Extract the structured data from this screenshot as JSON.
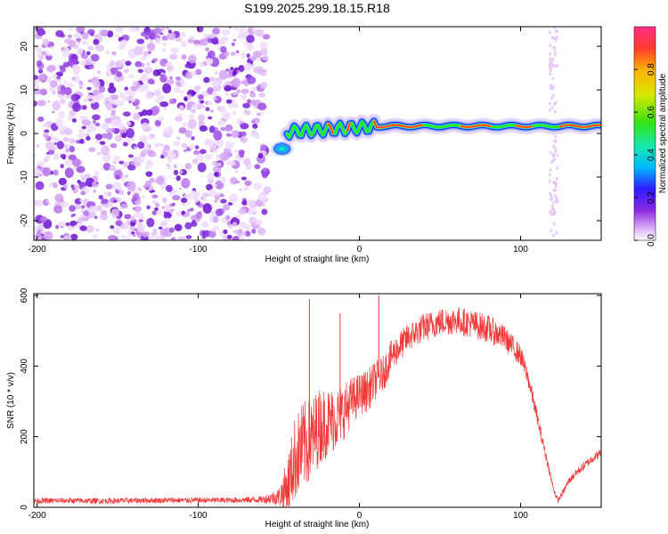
{
  "figure_title": "S199.2025.299.18.15.R18",
  "colors": {
    "snr_line": "#f03a3a",
    "noise_purple": "#8a2be2",
    "axis": "#000000"
  },
  "chart_data": [
    {
      "type": "heatmap",
      "title": "",
      "xlabel": "Height of straight line (km)",
      "ylabel": "Frequency (Hz)",
      "xlim": [
        -202,
        150
      ],
      "ylim": [
        -24.5,
        24.5
      ],
      "xticks": [
        -200,
        -100,
        0,
        100
      ],
      "xtick_labels": [
        "-200",
        "-100",
        "0",
        "100"
      ],
      "yticks": [
        -20,
        -10,
        0,
        10,
        20
      ],
      "ytick_labels": [
        "-20",
        "-10",
        "0",
        "10",
        "20"
      ],
      "colorbar": {
        "label": "Normalized spectral amplitude",
        "range": [
          0,
          1
        ],
        "ticks": [
          0,
          0.2,
          0.4,
          0.6,
          0.8
        ],
        "tick_labels": [
          "0.0",
          "0.2",
          "0.4",
          "0.6",
          "0.8"
        ],
        "colormap": [
          "#ffffff",
          "#d9a8f5",
          "#8a2be2",
          "#2f1bff",
          "#00b7ff",
          "#18e8b0",
          "#34e312",
          "#d6e800",
          "#ffb000",
          "#ff3b2f",
          "#ff2f8a"
        ]
      },
      "regions": [
        {
          "name": "noise",
          "x_range": [
            -202,
            -57
          ],
          "freq_range": [
            -24.5,
            24.5
          ],
          "amplitude": [
            0.02,
            0.25
          ]
        },
        {
          "name": "signal-onset",
          "x_range": [
            -57,
            -40
          ],
          "freq_center": -3,
          "amplitude": [
            0.2,
            0.5
          ]
        },
        {
          "name": "signal-trace",
          "x_range": [
            -40,
            150
          ],
          "freq_center_start": 0,
          "freq_center_end": 1.8,
          "amplitude": [
            0.3,
            1.0
          ]
        },
        {
          "name": "artifact-column",
          "x_range": [
            118,
            123
          ],
          "freq_range": [
            -24.5,
            24.5
          ],
          "amplitude": [
            0.02,
            0.1
          ]
        }
      ]
    },
    {
      "type": "line",
      "title": "",
      "xlabel": "Height of straight line (km)",
      "ylabel": "SNR (10 * v/v)",
      "xlim": [
        -202,
        150
      ],
      "ylim": [
        0,
        605
      ],
      "xticks": [
        -200,
        -100,
        0,
        100
      ],
      "xtick_labels": [
        "-200",
        "-100",
        "0",
        "100"
      ],
      "yticks": [
        0,
        200,
        400,
        600
      ],
      "ytick_labels": [
        "0",
        "200",
        "400",
        "600"
      ],
      "series": [
        {
          "name": "SNR",
          "x": [
            -202,
            -180,
            -160,
            -140,
            -120,
            -100,
            -80,
            -60,
            -50,
            -45,
            -40,
            -35,
            -30,
            -25,
            -20,
            -15,
            -10,
            -5,
            0,
            5,
            10,
            15,
            20,
            30,
            40,
            50,
            60,
            70,
            80,
            90,
            100,
            105,
            110,
            115,
            120,
            123,
            126,
            130,
            135,
            140,
            145,
            150
          ],
          "y": [
            18,
            19,
            18,
            19,
            20,
            20,
            20,
            22,
            30,
            55,
            140,
            170,
            190,
            230,
            240,
            250,
            270,
            300,
            320,
            330,
            360,
            380,
            430,
            480,
            510,
            525,
            530,
            520,
            505,
            480,
            430,
            360,
            260,
            160,
            60,
            18,
            40,
            75,
            100,
            120,
            140,
            155
          ],
          "noise_amplitude": [
            8,
            8,
            8,
            8,
            8,
            8,
            8,
            10,
            25,
            80,
            120,
            130,
            120,
            110,
            100,
            90,
            80,
            70,
            60,
            60,
            55,
            50,
            45,
            40,
            40,
            40,
            40,
            40,
            40,
            35,
            30,
            25,
            20,
            15,
            10,
            8,
            8,
            10,
            12,
            12,
            12,
            12
          ]
        }
      ],
      "annotations": [
        {
          "x": -31,
          "y": 590,
          "label": "spike"
        },
        {
          "x": -12,
          "y": 550,
          "label": "spike"
        },
        {
          "x": 12,
          "y": 600,
          "label": "spike"
        }
      ]
    }
  ]
}
